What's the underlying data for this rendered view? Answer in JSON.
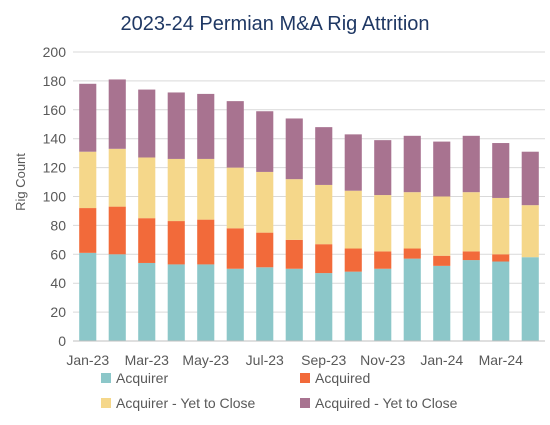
{
  "chart_data": {
    "type": "bar",
    "stacked": true,
    "title": "2023-24 Permian M&A Rig Attrition",
    "xlabel": "",
    "ylabel": "Rig Count",
    "ylim": [
      0,
      200
    ],
    "ytick_step": 20,
    "grid": true,
    "legend_position": "bottom",
    "categories": [
      "Jan-23",
      "Feb-23",
      "Mar-23",
      "Apr-23",
      "May-23",
      "Jun-23",
      "Jul-23",
      "Aug-23",
      "Sep-23",
      "Oct-23",
      "Nov-23",
      "Dec-23",
      "Jan-24",
      "Feb-24",
      "Mar-24",
      "Apr-24"
    ],
    "x_tick_labels": [
      "Jan-23",
      "",
      "Mar-23",
      "",
      "May-23",
      "",
      "Jul-23",
      "",
      "Sep-23",
      "",
      "Nov-23",
      "",
      "Jan-24",
      "",
      "Mar-24",
      ""
    ],
    "series": [
      {
        "name": "Acquirer",
        "color": "#8cc7c9",
        "values": [
          61,
          60,
          54,
          53,
          53,
          50,
          51,
          50,
          47,
          48,
          50,
          57,
          52,
          56,
          55,
          58
        ]
      },
      {
        "name": "Acquired",
        "color": "#f26a3a",
        "values": [
          31,
          33,
          31,
          30,
          31,
          28,
          24,
          20,
          20,
          16,
          12,
          7,
          7,
          6,
          5,
          0
        ]
      },
      {
        "name": "Acquirer - Yet to Close",
        "color": "#f5d78a",
        "values": [
          39,
          40,
          42,
          43,
          42,
          42,
          42,
          42,
          41,
          40,
          39,
          39,
          41,
          41,
          39,
          36
        ]
      },
      {
        "name": "Acquired - Yet to Close",
        "color": "#a87390",
        "values": [
          47,
          48,
          47,
          46,
          45,
          46,
          42,
          42,
          40,
          39,
          38,
          39,
          38,
          39,
          38,
          37
        ]
      }
    ]
  }
}
